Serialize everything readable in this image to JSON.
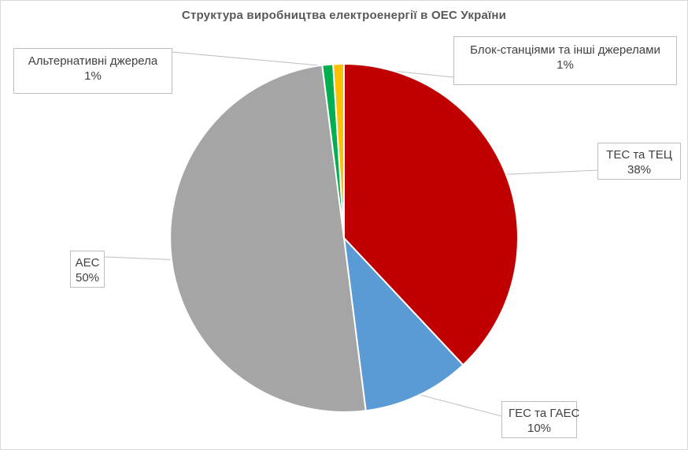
{
  "chart_data": {
    "type": "pie",
    "title": "Структура виробництва електроенергії в ОЕС України",
    "start_angle_deg": 0,
    "direction": "clockwise",
    "slices": [
      {
        "label": "ТЕС та ТЕЦ",
        "value": 38,
        "value_label": "38%",
        "color": "#c00000"
      },
      {
        "label": "ГЕС та ГАЕС",
        "value": 10,
        "value_label": "10%",
        "color": "#5b9bd5"
      },
      {
        "label": "АЕС",
        "value": 50,
        "value_label": "50%",
        "color": "#a5a5a5"
      },
      {
        "label": "Альтернативні джерела",
        "value": 1,
        "value_label": "1%",
        "color": "#00b050"
      },
      {
        "label": "Блок-станціями та інші джерелами",
        "value": 1,
        "value_label": "1%",
        "color": "#ffc000"
      }
    ]
  }
}
